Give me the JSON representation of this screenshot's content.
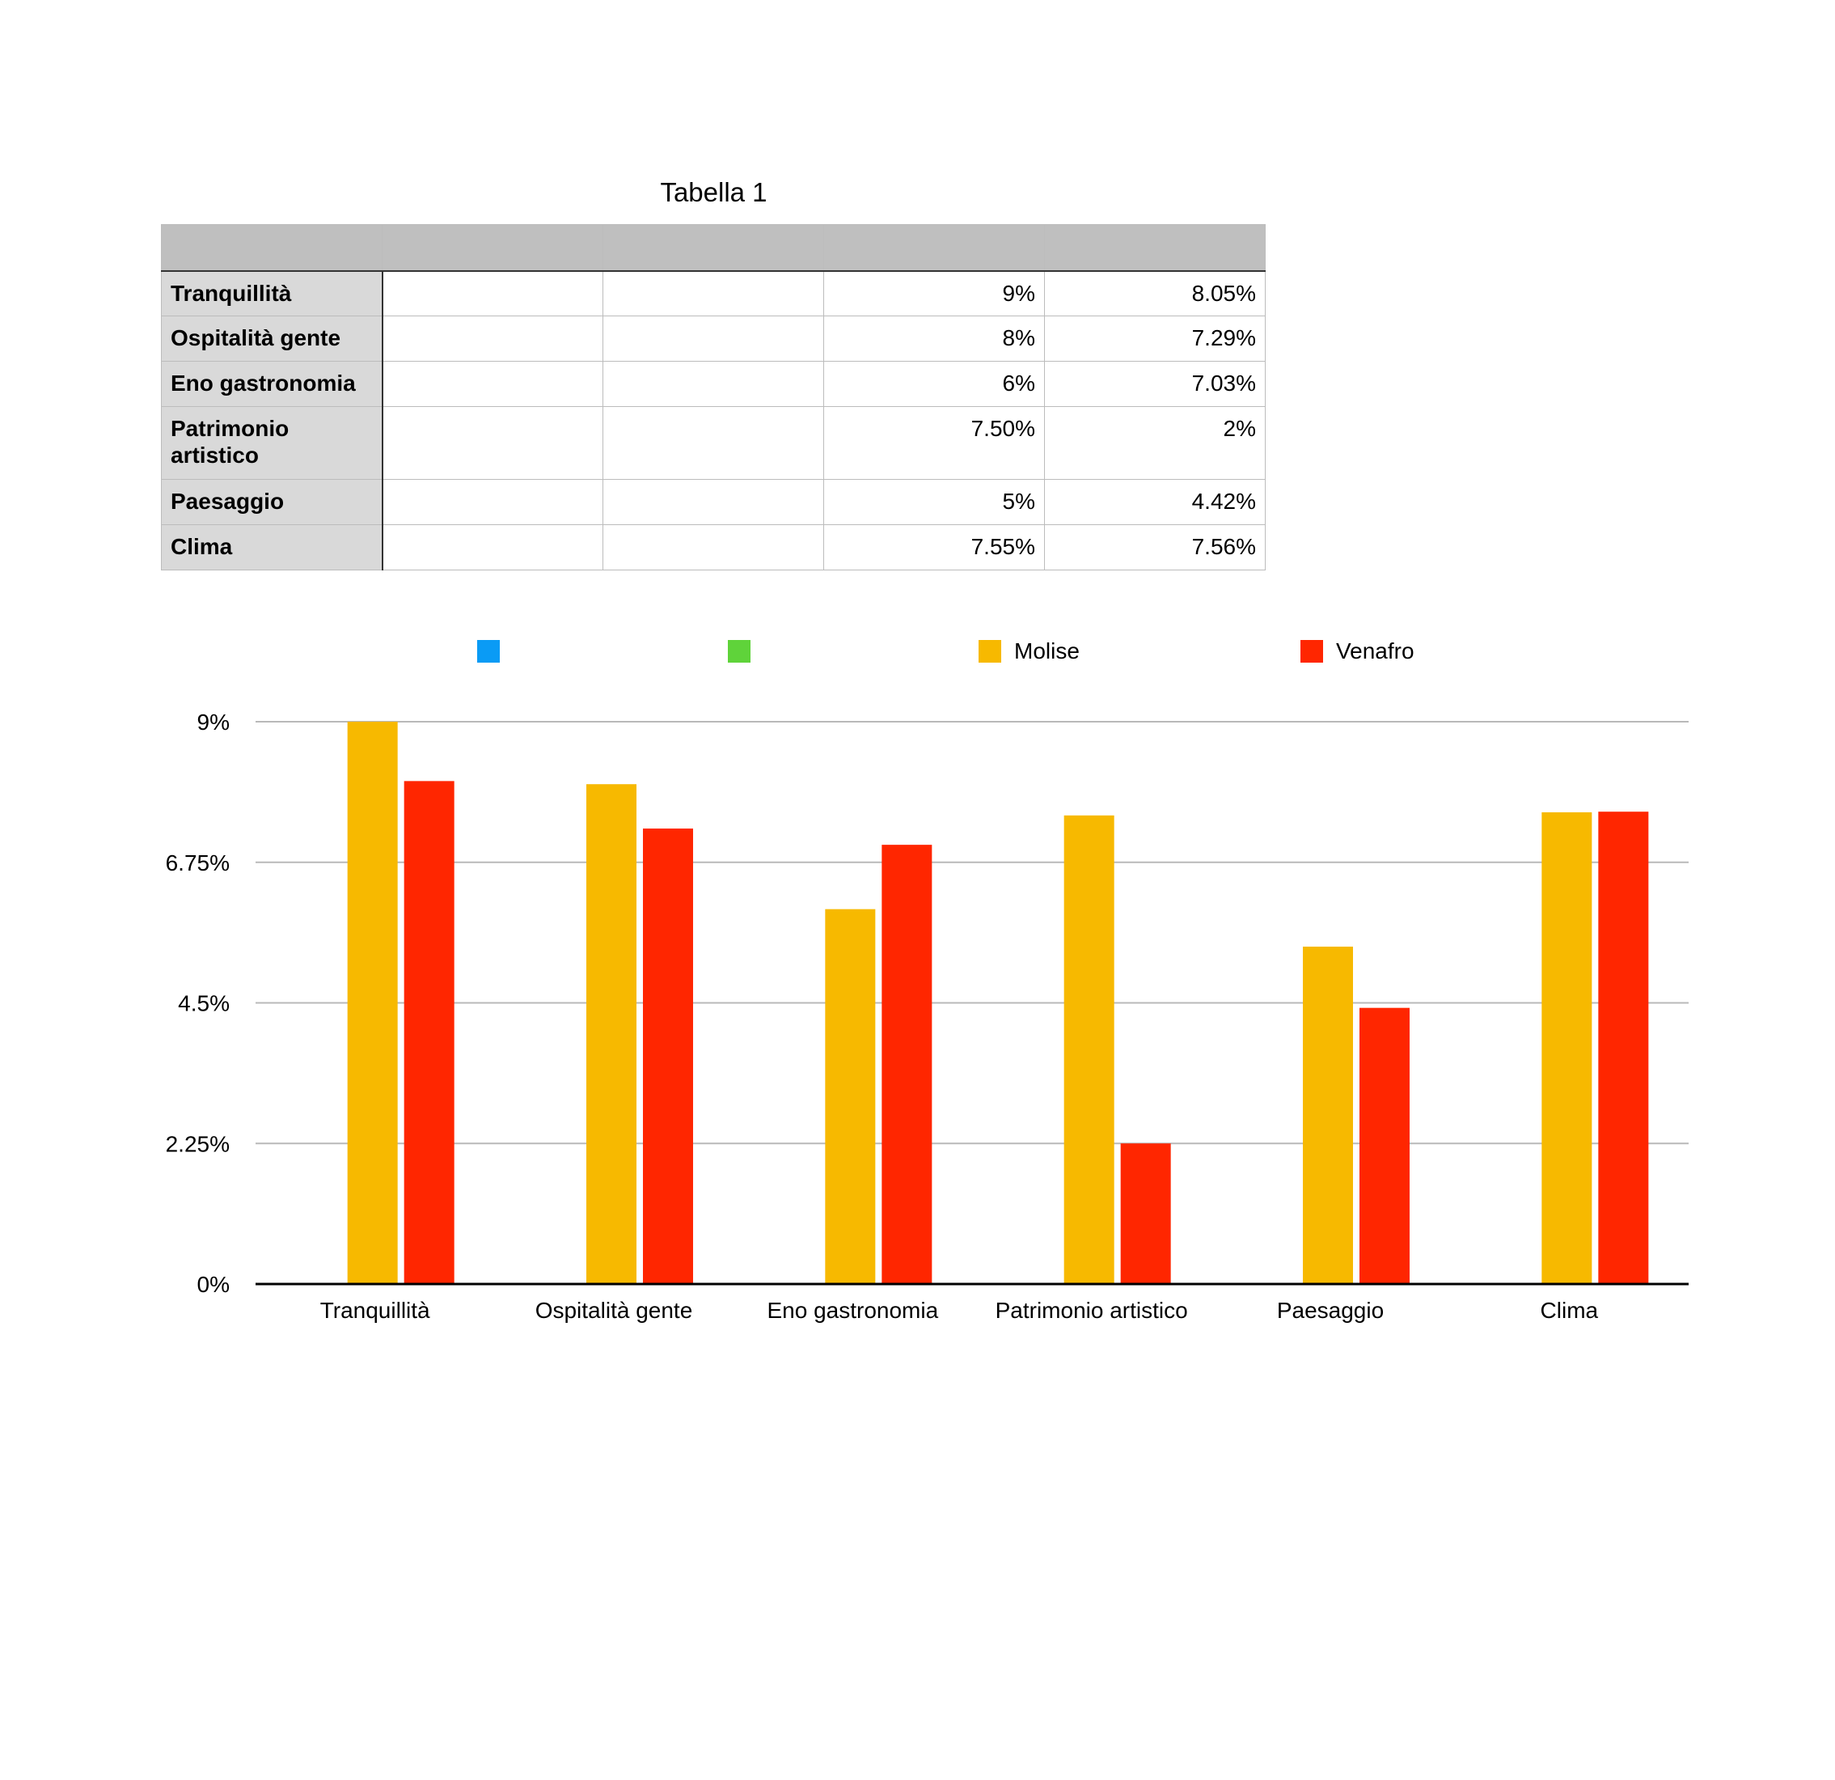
{
  "table": {
    "title": "Tabella 1",
    "header": [
      "",
      "",
      "",
      "",
      ""
    ],
    "rows": [
      {
        "label": "Tranquillità",
        "c1": "",
        "c2": "",
        "c3": "9%",
        "c4": "8.05%"
      },
      {
        "label": "Ospitalità gente",
        "c1": "",
        "c2": "",
        "c3": "8%",
        "c4": "7.29%"
      },
      {
        "label": "Eno gastronomia",
        "c1": "",
        "c2": "",
        "c3": "6%",
        "c4": "7.03%"
      },
      {
        "label": "Patrimonio artistico",
        "c1": "",
        "c2": "",
        "c3": "7.50%",
        "c4": "2%"
      },
      {
        "label": "Paesaggio",
        "c1": "",
        "c2": "",
        "c3": "5%",
        "c4": "4.42%"
      },
      {
        "label": "Clima",
        "c1": "",
        "c2": "",
        "c3": "7.55%",
        "c4": "7.56%"
      }
    ]
  },
  "chart_data": {
    "type": "bar",
    "title": "",
    "xlabel": "",
    "ylabel": "",
    "categories": [
      "Tranquillità",
      "Ospitalità gente",
      "Eno gastronomia",
      "Patrimonio artistico",
      "Paesaggio",
      "Clima"
    ],
    "series": [
      {
        "name": "",
        "color": "#0a9bf5",
        "values": [
          null,
          null,
          null,
          null,
          null,
          null
        ]
      },
      {
        "name": "",
        "color": "#5fd33a",
        "values": [
          null,
          null,
          null,
          null,
          null,
          null
        ]
      },
      {
        "name": "Molise",
        "color": "#f7b900",
        "values": [
          9,
          8,
          6,
          7.5,
          5.4,
          7.55
        ]
      },
      {
        "name": "Venafro",
        "color": "#ff2600",
        "values": [
          8.05,
          7.29,
          7.03,
          2.25,
          4.42,
          7.56
        ]
      }
    ],
    "ylim": [
      0,
      9
    ],
    "yticks": [
      "0%",
      "2.25%",
      "4.5%",
      "6.75%",
      "9%"
    ],
    "ytick_values": [
      0,
      2.25,
      4.5,
      6.75,
      9
    ],
    "grid": true,
    "legend_position": "top"
  }
}
